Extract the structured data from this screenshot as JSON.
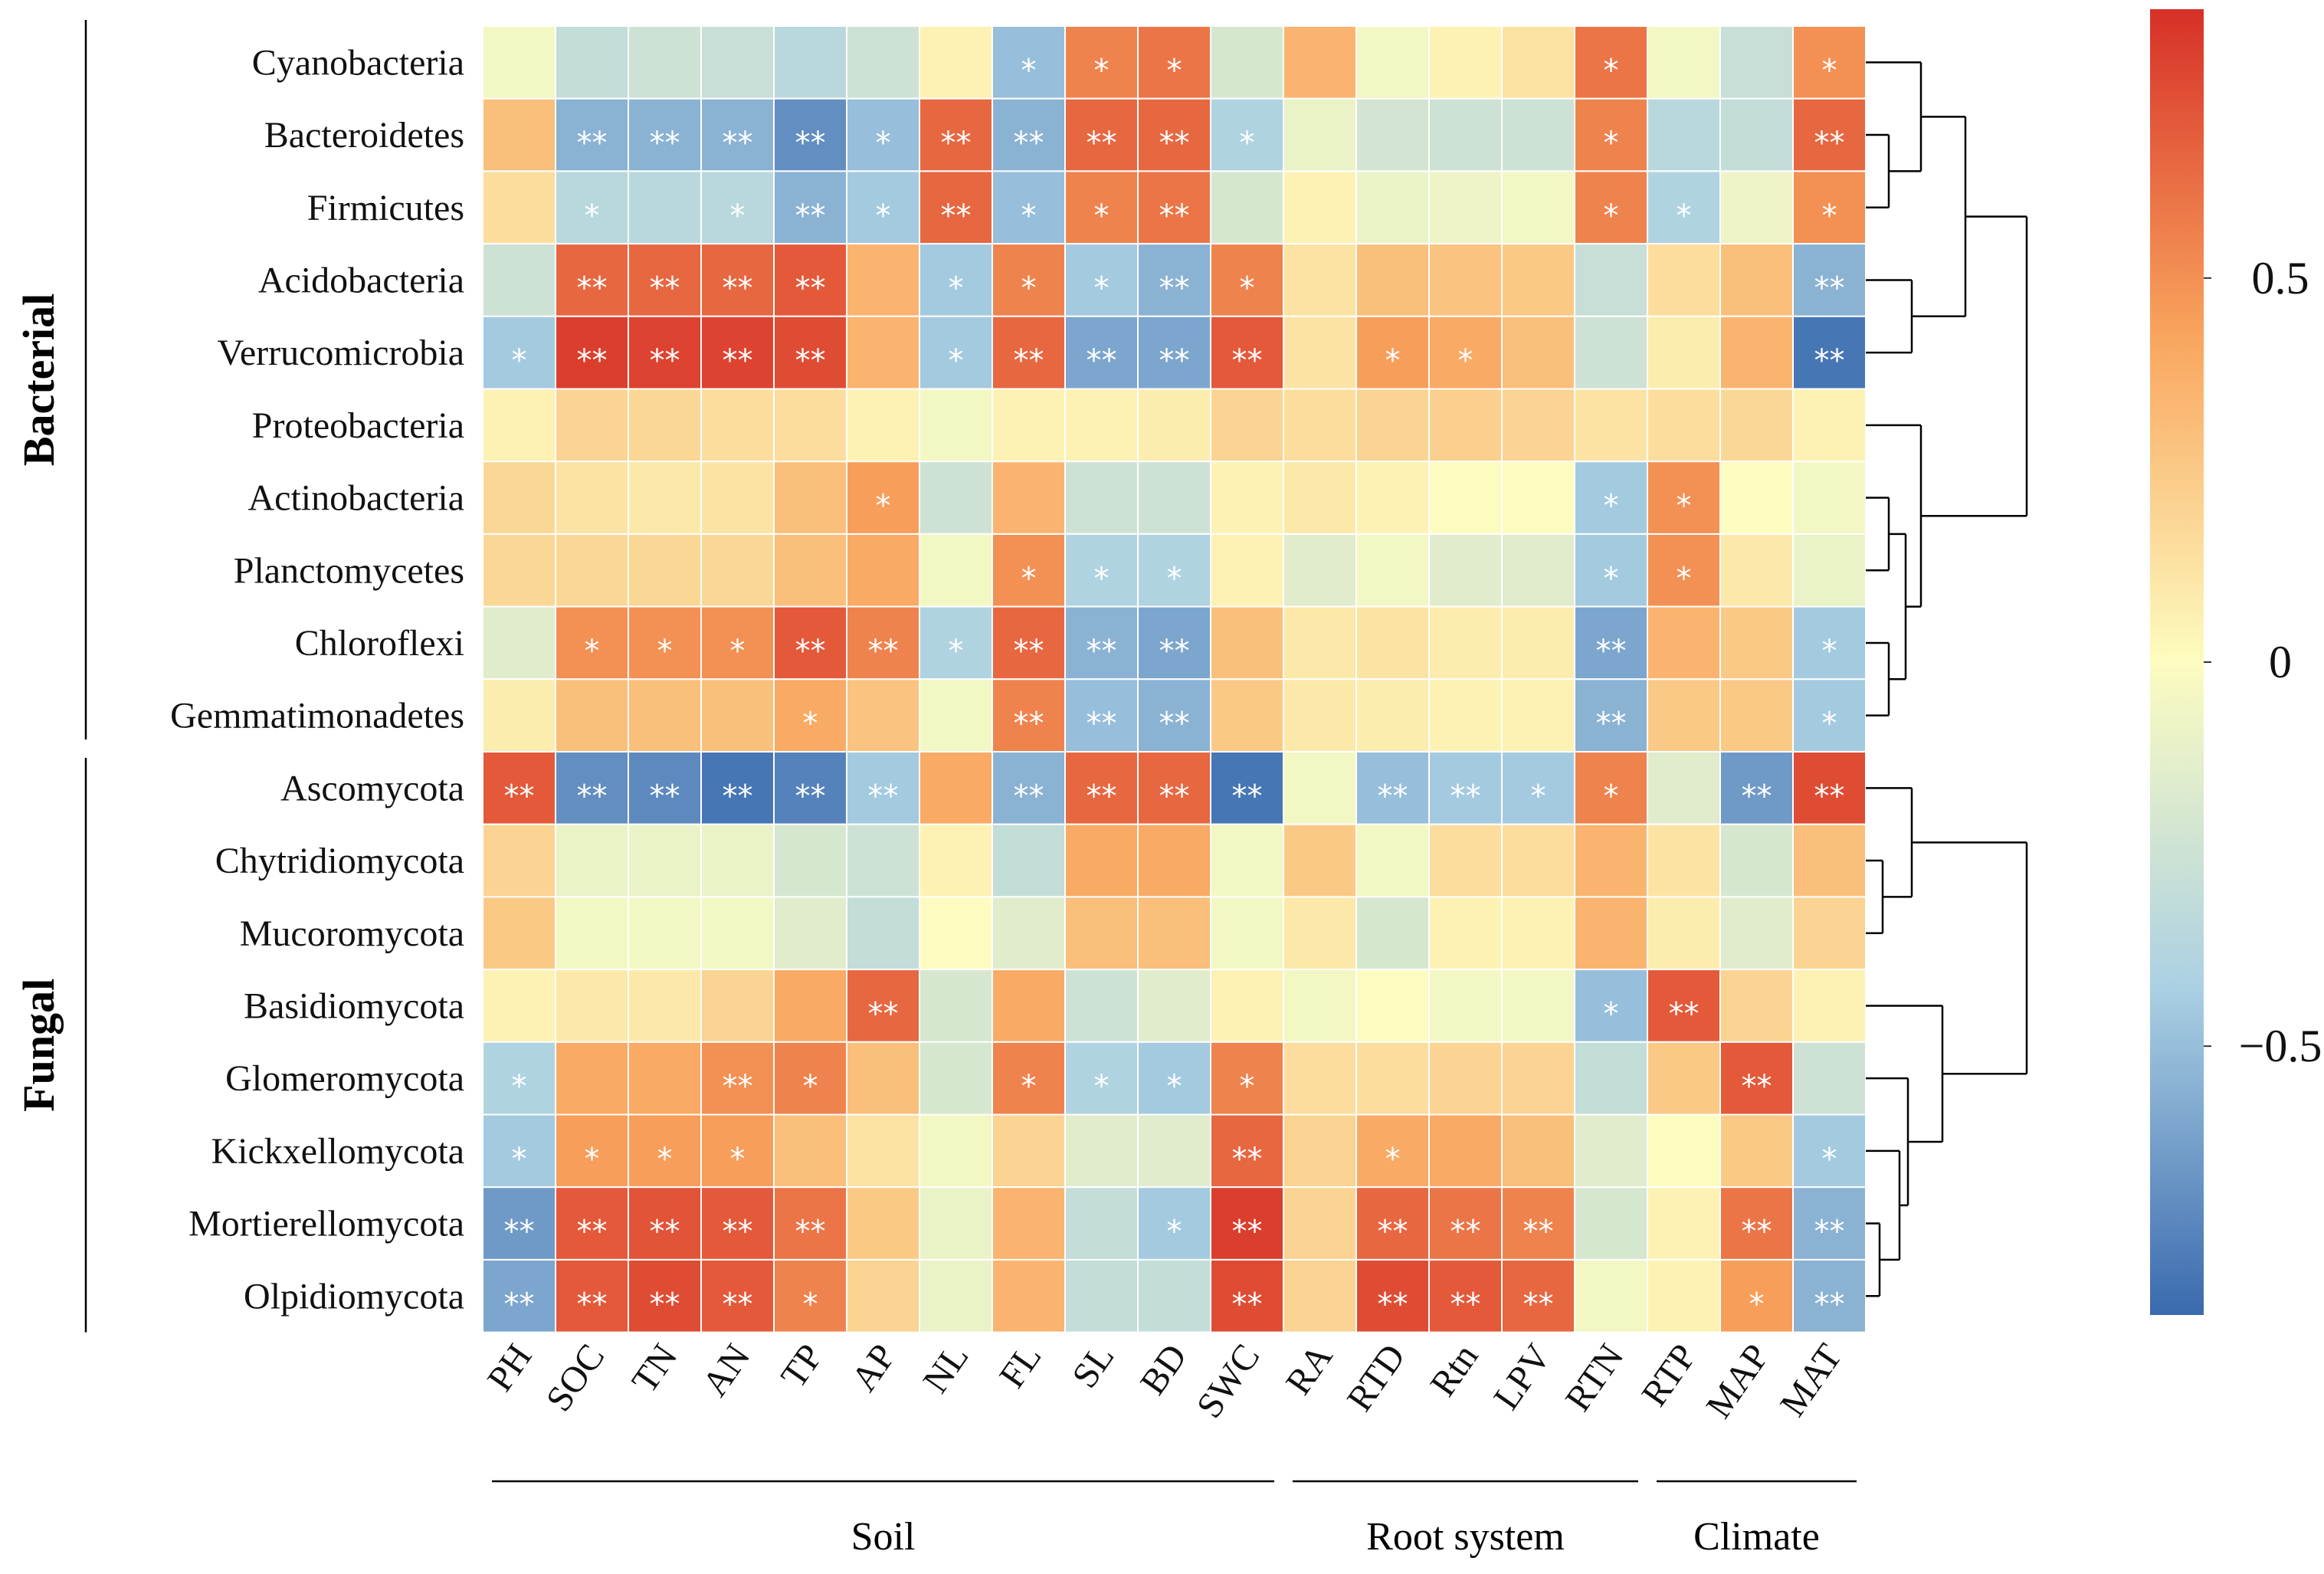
{
  "chart_data": {
    "type": "heatmap",
    "title": "",
    "rows": [
      "Cyanobacteria",
      "Bacteroidetes",
      "Firmicutes",
      "Acidobacteria",
      "Verrucomicrobia",
      "Proteobacteria",
      "Actinobacteria",
      "Planctomycetes",
      "Chloroflexi",
      "Gemmatimonadetes",
      "Ascomycota",
      "Chytridiomycota",
      "Mucoromycota",
      "Basidiomycota",
      "Glomeromycota",
      "Kickxellomycota",
      "Mortierellomycota",
      "Olpidiomycota"
    ],
    "columns": [
      "PH",
      "SOC",
      "TN",
      "AN",
      "TP",
      "AP",
      "NL",
      "FL",
      "SL",
      "BD",
      "SWC",
      "RA",
      "RTD",
      "Rtn",
      "LPV",
      "RTN",
      "RTP",
      "MAP",
      "MAT"
    ],
    "values": [
      [
        -0.05,
        -0.3,
        -0.25,
        -0.28,
        -0.35,
        -0.25,
        0.05,
        -0.5,
        0.55,
        0.6,
        -0.2,
        0.35,
        -0.05,
        0.05,
        0.12,
        0.6,
        -0.05,
        -0.28,
        0.5
      ],
      [
        0.3,
        -0.55,
        -0.55,
        -0.55,
        -0.7,
        -0.5,
        0.65,
        -0.55,
        0.65,
        0.65,
        -0.4,
        -0.1,
        -0.22,
        -0.25,
        -0.25,
        0.55,
        -0.35,
        -0.3,
        0.65
      ],
      [
        0.15,
        -0.35,
        -0.35,
        -0.35,
        -0.55,
        -0.45,
        0.65,
        -0.5,
        0.55,
        0.6,
        -0.2,
        0.05,
        -0.1,
        -0.08,
        -0.05,
        0.55,
        -0.4,
        -0.08,
        0.5
      ],
      [
        -0.25,
        0.65,
        0.65,
        0.65,
        0.7,
        0.35,
        -0.45,
        0.55,
        -0.45,
        -0.55,
        0.55,
        0.12,
        0.3,
        0.28,
        0.25,
        -0.28,
        0.15,
        0.3,
        -0.55
      ],
      [
        -0.45,
        0.8,
        0.78,
        0.78,
        0.75,
        0.35,
        -0.45,
        0.65,
        -0.6,
        -0.6,
        0.7,
        0.12,
        0.45,
        0.4,
        0.3,
        -0.25,
        0.08,
        0.35,
        -0.8
      ],
      [
        0.05,
        0.2,
        0.18,
        0.15,
        0.15,
        0.05,
        -0.05,
        0.05,
        0.05,
        0.08,
        0.2,
        0.15,
        0.2,
        0.22,
        0.2,
        0.12,
        0.15,
        0.18,
        0.05
      ],
      [
        0.18,
        0.12,
        0.1,
        0.12,
        0.3,
        0.45,
        -0.25,
        0.35,
        -0.25,
        -0.25,
        0.05,
        0.1,
        0.05,
        0.0,
        0.0,
        -0.45,
        0.5,
        0.0,
        -0.05
      ],
      [
        0.18,
        0.18,
        0.18,
        0.18,
        0.3,
        0.4,
        -0.05,
        0.5,
        -0.4,
        -0.4,
        0.05,
        -0.15,
        -0.05,
        -0.15,
        -0.15,
        -0.45,
        0.5,
        0.1,
        -0.1
      ],
      [
        -0.15,
        0.5,
        0.5,
        0.5,
        0.7,
        0.55,
        -0.4,
        0.65,
        -0.55,
        -0.6,
        0.3,
        0.1,
        0.12,
        0.08,
        0.08,
        -0.6,
        0.35,
        0.25,
        -0.45
      ],
      [
        0.08,
        0.3,
        0.3,
        0.3,
        0.4,
        0.28,
        -0.05,
        0.55,
        -0.5,
        -0.55,
        0.25,
        0.1,
        0.08,
        0.05,
        0.05,
        -0.55,
        0.25,
        0.25,
        -0.45
      ],
      [
        0.7,
        -0.7,
        -0.72,
        -0.8,
        -0.75,
        -0.45,
        0.4,
        -0.55,
        0.65,
        0.65,
        -0.8,
        -0.05,
        -0.5,
        -0.45,
        -0.45,
        0.55,
        -0.15,
        -0.65,
        0.75
      ],
      [
        0.2,
        -0.1,
        -0.1,
        -0.1,
        -0.2,
        -0.25,
        0.05,
        -0.3,
        0.4,
        0.4,
        -0.05,
        0.25,
        -0.05,
        0.15,
        0.15,
        0.35,
        0.12,
        -0.2,
        0.3
      ],
      [
        0.25,
        -0.05,
        -0.05,
        -0.05,
        -0.15,
        -0.3,
        0.0,
        -0.15,
        0.3,
        0.3,
        -0.05,
        0.1,
        -0.2,
        0.05,
        0.05,
        0.35,
        0.08,
        -0.15,
        0.2
      ],
      [
        0.05,
        0.1,
        0.1,
        0.2,
        0.4,
        0.65,
        -0.2,
        0.4,
        -0.25,
        -0.15,
        0.05,
        -0.05,
        0.0,
        -0.05,
        -0.05,
        -0.5,
        0.7,
        0.2,
        0.05
      ],
      [
        -0.4,
        0.4,
        0.4,
        0.5,
        0.55,
        0.3,
        -0.2,
        0.55,
        -0.4,
        -0.45,
        0.55,
        0.15,
        0.15,
        0.2,
        0.2,
        -0.3,
        0.25,
        0.7,
        -0.25
      ],
      [
        -0.45,
        0.45,
        0.45,
        0.45,
        0.3,
        0.12,
        -0.05,
        0.2,
        -0.15,
        -0.15,
        0.65,
        0.2,
        0.4,
        0.4,
        0.3,
        -0.15,
        0.0,
        0.25,
        -0.45
      ],
      [
        -0.65,
        0.7,
        0.72,
        0.7,
        0.6,
        0.25,
        -0.1,
        0.35,
        -0.3,
        -0.45,
        0.8,
        0.2,
        0.65,
        0.6,
        0.55,
        -0.2,
        0.05,
        0.6,
        -0.55
      ],
      [
        -0.6,
        0.7,
        0.75,
        0.7,
        0.55,
        0.2,
        -0.1,
        0.35,
        -0.3,
        -0.3,
        0.75,
        0.2,
        0.75,
        0.7,
        0.65,
        -0.05,
        0.05,
        0.45,
        -0.55
      ]
    ],
    "significance": [
      [
        "",
        "",
        "",
        "",
        "",
        "",
        "",
        "*",
        "*",
        "*",
        "",
        "",
        "",
        "",
        "",
        "*",
        "",
        "",
        "*"
      ],
      [
        "",
        "**",
        "**",
        "**",
        "**",
        "*",
        "**",
        "**",
        "**",
        "**",
        "*",
        "",
        "",
        "",
        "",
        "*",
        "",
        "",
        "**"
      ],
      [
        "",
        "*",
        "",
        "*",
        "**",
        "*",
        "**",
        "*",
        "*",
        "**",
        "",
        "",
        "",
        "",
        "",
        "*",
        "*",
        "",
        "*"
      ],
      [
        "",
        "**",
        "**",
        "**",
        "**",
        "",
        "*",
        "*",
        "*",
        "**",
        "*",
        "",
        "",
        "",
        "",
        "",
        "",
        "",
        "**"
      ],
      [
        "*",
        "**",
        "**",
        "**",
        "**",
        "",
        "*",
        "**",
        "**",
        "**",
        "**",
        "",
        "*",
        "*",
        "",
        "",
        "",
        "",
        "**"
      ],
      [
        "",
        "",
        "",
        "",
        "",
        "",
        "",
        "",
        "",
        "",
        "",
        "",
        "",
        "",
        "",
        "",
        "",
        "",
        ""
      ],
      [
        "",
        "",
        "",
        "",
        "",
        "*",
        "",
        "",
        "",
        "",
        "",
        "",
        "",
        "",
        "",
        "*",
        "*",
        "",
        ""
      ],
      [
        "",
        "",
        "",
        "",
        "",
        "",
        "",
        "*",
        "*",
        "*",
        "",
        "",
        "",
        "",
        "",
        "*",
        "*",
        "",
        ""
      ],
      [
        "",
        "*",
        "*",
        "*",
        "**",
        "**",
        "*",
        "**",
        "**",
        "**",
        "",
        "",
        "",
        "",
        "",
        "**",
        "",
        "",
        "*"
      ],
      [
        "",
        "",
        "",
        "",
        "*",
        "",
        "",
        "**",
        "**",
        "**",
        "",
        "",
        "",
        "",
        "",
        "**",
        "",
        "",
        "*"
      ],
      [
        "**",
        "**",
        "**",
        "**",
        "**",
        "**",
        "",
        "**",
        "**",
        "**",
        "**",
        "",
        "**",
        "**",
        "*",
        "*",
        "",
        "**",
        "**"
      ],
      [
        "",
        "",
        "",
        "",
        "",
        "",
        "",
        "",
        "",
        "",
        "",
        "",
        "",
        "",
        "",
        "",
        "",
        "",
        ""
      ],
      [
        "",
        "",
        "",
        "",
        "",
        "",
        "",
        "",
        "",
        "",
        "",
        "",
        "",
        "",
        "",
        "",
        "",
        "",
        ""
      ],
      [
        "",
        "",
        "",
        "",
        "",
        "**",
        "",
        "",
        "",
        "",
        "",
        "",
        "",
        "",
        "",
        "*",
        "**",
        "",
        ""
      ],
      [
        "*",
        "",
        "",
        "**",
        "*",
        "",
        "",
        "*",
        "*",
        "*",
        "*",
        "",
        "",
        "",
        "",
        "",
        "",
        "**",
        ""
      ],
      [
        "*",
        "*",
        "*",
        "*",
        "",
        "",
        "",
        "",
        "",
        "",
        "**",
        "",
        "*",
        "",
        "",
        "",
        "",
        "",
        "*"
      ],
      [
        "**",
        "**",
        "**",
        "**",
        "**",
        "",
        "",
        "",
        "",
        "*",
        "**",
        "",
        "**",
        "**",
        "**",
        "",
        "",
        "**",
        "**"
      ],
      [
        "**",
        "**",
        "**",
        "**",
        "*",
        "",
        "",
        "",
        "",
        "",
        "**",
        "",
        "**",
        "**",
        "**",
        "",
        "",
        "*",
        "**"
      ]
    ],
    "row_groups": [
      {
        "label": "Bacterial",
        "rows": [
          0,
          9
        ]
      },
      {
        "label": "Fungal",
        "rows": [
          10,
          17
        ]
      }
    ],
    "column_groups": [
      {
        "label": "Soil",
        "cols": [
          0,
          10
        ]
      },
      {
        "label": "Root system",
        "cols": [
          11,
          15
        ]
      },
      {
        "label": "Climate",
        "cols": [
          16,
          18
        ]
      }
    ],
    "colorbar": {
      "range": [
        -0.85,
        0.85
      ],
      "ticks": [
        0.5,
        0,
        -0.5
      ],
      "tick_labels": [
        "0.5",
        "0",
        "−0.5"
      ],
      "colors": {
        "low": "#3a6aae",
        "mid_low": "#abd0e3",
        "mid": "#fdfcc0",
        "mid_high": "#f9a55e",
        "high": "#d73027"
      }
    },
    "dendrogram": {
      "row_clusters": [
        {
          "members": [
            "Bacteroidetes",
            "Firmicutes"
          ]
        },
        {
          "members": [
            "Cyanobacteria",
            "Bacteroidetes",
            "Firmicutes"
          ]
        },
        {
          "members": [
            "Acidobacteria",
            "Verrucomicrobia"
          ]
        },
        {
          "members": [
            "Actinobacteria",
            "Planctomycetes"
          ]
        },
        {
          "members": [
            "Chloroflexi",
            "Gemmatimonadetes"
          ]
        },
        {
          "members": [
            "Actinobacteria",
            "Planctomycetes",
            "Chloroflexi",
            "Gemmatimonadetes"
          ]
        },
        {
          "members": [
            "Chytridiomycota",
            "Mucoromycota"
          ]
        },
        {
          "members": [
            "Mortierellomycota",
            "Olpidiomycota"
          ]
        }
      ]
    }
  }
}
